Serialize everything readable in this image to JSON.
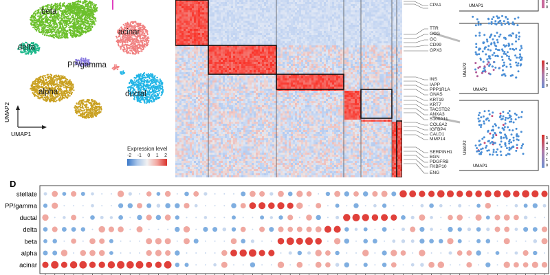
{
  "umap": {
    "xlabel": "UMAP1",
    "ylabel": "UMAP2",
    "clusters": [
      {
        "name": "beta",
        "color": "#6cc02c"
      },
      {
        "name": "acinar",
        "color": "#f08080"
      },
      {
        "name": "delta",
        "color": "#1cb78a"
      },
      {
        "name": "PP/gamma",
        "color": "#8a7be0"
      },
      {
        "name": "alpha",
        "color": "#c9a020"
      },
      {
        "name": "ductal",
        "color": "#22b5e6"
      }
    ]
  },
  "legend": {
    "title": "Expression level",
    "ticks": [
      "-2",
      "-1",
      "0",
      "1",
      "2"
    ]
  },
  "heatmap_genes": {
    "acinar": [
      "CPA1"
    ],
    "alpha": [
      "TTR",
      "GCG",
      "GC",
      "CD99",
      "GPX3"
    ],
    "beta": [
      "INS",
      "IAPP",
      "PPP1R1A",
      "GNAS"
    ],
    "ductal": [
      "KRT19",
      "KRT7",
      "TACSTD2",
      "ANXA3",
      "S100A11"
    ],
    "stellate_a": [
      "COL6A2",
      "IGFBP4",
      "CALD1",
      "MMP14"
    ],
    "stellate_b": [
      "SERPINH1",
      "BGN",
      "PDGFRB",
      "FKBP10",
      "ENG"
    ]
  },
  "mini_umaps": [
    {
      "axis_x": "UMAP1",
      "scale": [
        "2",
        "0"
      ]
    },
    {
      "axis_x": "UMAP1",
      "axis_y": "UMAP2",
      "scale": [
        "4",
        "3",
        "2",
        "1",
        "0"
      ]
    },
    {
      "axis_x": "UMAP1",
      "axis_y": "UMAP2",
      "scale": [
        "5",
        "4",
        "3",
        "2",
        "1",
        "0"
      ]
    }
  ],
  "panel_letter": "D",
  "chart_data": {
    "type": "dot",
    "title": "",
    "categories": [
      "stellate",
      "PP/gamma",
      "ductal",
      "delta",
      "beta",
      "alpha",
      "acinar"
    ],
    "n_genes": 54,
    "highlight_groups": [
      {
        "row": "acinar",
        "from": 0,
        "to": 13
      },
      {
        "row": "alpha",
        "from": 20,
        "to": 24
      },
      {
        "row": "beta",
        "from": 25,
        "to": 29
      },
      {
        "row": "delta",
        "from": 30,
        "to": 31
      },
      {
        "row": "ductal",
        "from": 32,
        "to": 37
      },
      {
        "row": "PP/gamma",
        "from": 22,
        "to": 26
      },
      {
        "row": "stellate",
        "from": 38,
        "to": 53
      }
    ]
  }
}
